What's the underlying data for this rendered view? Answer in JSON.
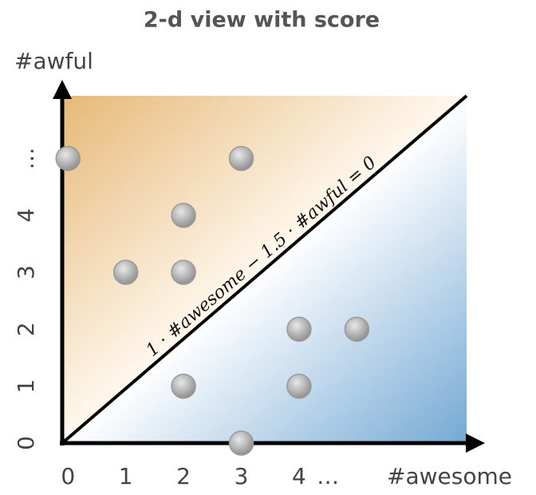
{
  "chart_data": {
    "type": "scatter",
    "title": "2-d view with score",
    "x_label": "#awesome",
    "y_label": "#awful",
    "annotation": "1 · #awesome − 1.5 · #awful = 0",
    "xlim": [
      -0.1,
      6.9
    ],
    "ylim": [
      0,
      6.1
    ],
    "xticks": [
      0,
      1,
      2,
      3,
      4,
      {
        "value": 4.5,
        "label": "…"
      }
    ],
    "yticks": [
      0,
      1,
      2,
      3,
      4,
      {
        "value": 5,
        "label": "…"
      }
    ],
    "series": [
      {
        "color": "#9a9a9a",
        "x": [
          0,
          3,
          2,
          1,
          2,
          4,
          5,
          2,
          4,
          3
        ],
        "y": [
          5,
          5,
          4,
          3,
          3,
          2,
          2,
          1,
          1,
          0
        ]
      }
    ]
  }
}
